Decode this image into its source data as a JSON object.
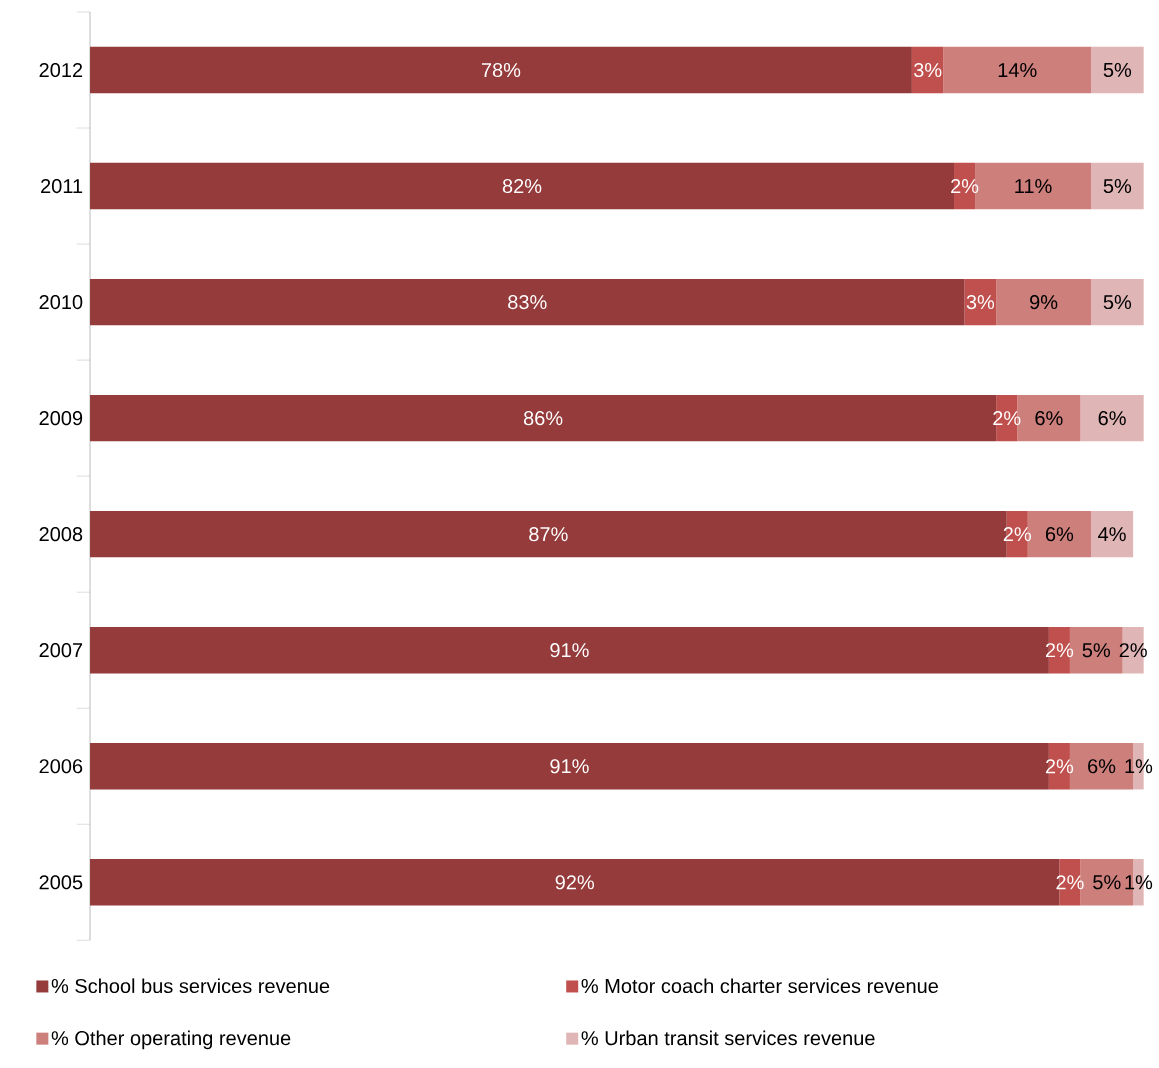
{
  "chart_data": {
    "type": "bar",
    "orientation": "horizontal",
    "stacked": true,
    "categories": [
      "2012",
      "2011",
      "2010",
      "2009",
      "2008",
      "2007",
      "2006",
      "2005"
    ],
    "xlim": [
      0,
      100
    ],
    "tick_labels": "y",
    "legend": "bottom",
    "series": [
      {
        "name": "% School bus services revenue",
        "color": "#953b3b",
        "values": [
          78,
          82,
          83,
          86,
          87,
          91,
          91,
          92
        ],
        "value_labels": [
          "78%",
          "82%",
          "83%",
          "86%",
          "87%",
          "91%",
          "91%",
          "92%"
        ]
      },
      {
        "name": "% Motor coach charter services revenue",
        "color": "#c0504d",
        "values": [
          3,
          2,
          3,
          2,
          2,
          2,
          2,
          2
        ],
        "value_labels": [
          "3%",
          "2%",
          "3%",
          "2%",
          "2%",
          "2%",
          "2%",
          "2%"
        ]
      },
      {
        "name": "% Other operating revenue",
        "color": "#cd7f7c",
        "values": [
          14,
          11,
          9,
          6,
          6,
          5,
          6,
          5
        ],
        "value_labels": [
          "14%",
          "11%",
          "9%",
          "6%",
          "6%",
          "5%",
          "6%",
          "5%"
        ]
      },
      {
        "name": "% Urban transit services revenue",
        "color": "#e0b5b5",
        "values": [
          5,
          5,
          5,
          6,
          4,
          2,
          1,
          1
        ],
        "value_labels": [
          "5%",
          "5%",
          "5%",
          "6%",
          "4%",
          "2%",
          "1%",
          "1%"
        ]
      }
    ]
  }
}
